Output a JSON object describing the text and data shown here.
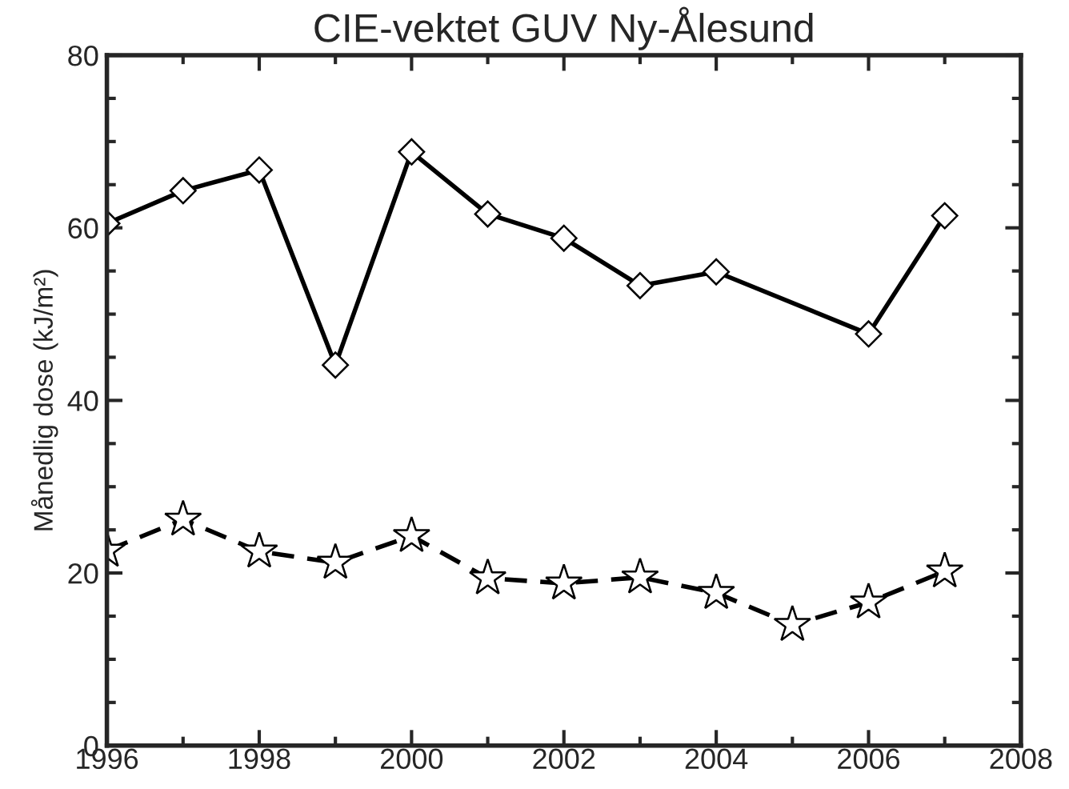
{
  "chart_data": {
    "type": "line",
    "title": "CIE-vektet GUV Ny-Ålesund",
    "ylabel": "Månedlig dose (kJ/m²)",
    "series": [
      {
        "color": "#000000",
        "marker": "diamond",
        "line_style": "solid",
        "x": [
          1996,
          1997,
          1998,
          1999,
          2000,
          2001,
          2002,
          2003,
          2004,
          2006,
          2007
        ],
        "values": [
          60.5,
          64.3,
          66.7,
          44.1,
          68.8,
          61.6,
          58.8,
          53.3,
          54.9,
          47.7,
          61.4
        ]
      },
      {
        "color": "#000000",
        "marker": "star",
        "line_style": "dashed",
        "x": [
          1996,
          1997,
          1998,
          1999,
          2000,
          2001,
          2002,
          2003,
          2004,
          2005,
          2006,
          2007
        ],
        "values": [
          22.6,
          26.2,
          22.5,
          21.2,
          24.3,
          19.4,
          18.8,
          19.5,
          17.7,
          14.0,
          16.6,
          20.2
        ]
      }
    ],
    "xlim": [
      1996,
      2008
    ],
    "xticks": [
      1996,
      1998,
      2000,
      2002,
      2004,
      2006,
      2008
    ],
    "ylim": [
      0,
      80
    ],
    "yticks": [
      0,
      20,
      40,
      60,
      80
    ],
    "grid": false
  }
}
